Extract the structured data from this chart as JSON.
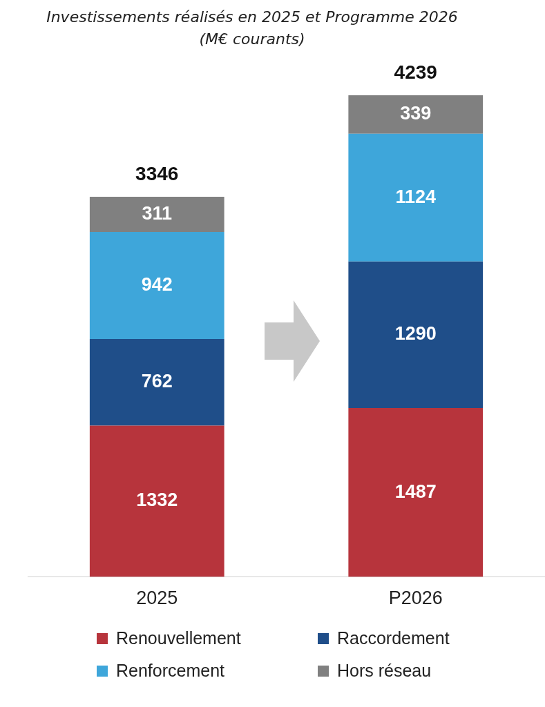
{
  "chart_data": {
    "type": "bar",
    "title": "Investissements réalisés en 2025 et Programme 2026",
    "subtitle": "(M€ courants)",
    "categories": [
      "2025",
      "P2026"
    ],
    "stacked": true,
    "data_labels": true,
    "legend": "bottom",
    "series": [
      {
        "name": "Renouvellement",
        "color": "#b7343c",
        "values": [
          1332,
          1487
        ]
      },
      {
        "name": "Raccordement",
        "color": "#1f4e89",
        "values": [
          762,
          1290
        ]
      },
      {
        "name": "Renforcement",
        "color": "#3ea6da",
        "values": [
          942,
          1124
        ]
      },
      {
        "name": "Hors réseau",
        "color": "#808080",
        "values": [
          311,
          339
        ]
      }
    ],
    "totals": [
      "3346",
      "4239"
    ]
  }
}
